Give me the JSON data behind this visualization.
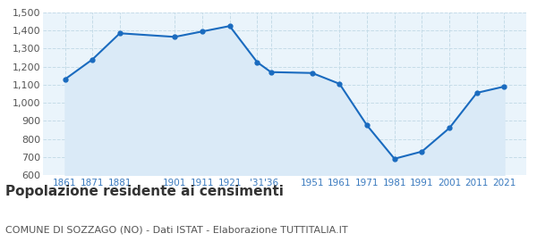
{
  "years": [
    1861,
    1871,
    1881,
    1901,
    1911,
    1921,
    1931,
    1936,
    1951,
    1961,
    1971,
    1981,
    1991,
    2001,
    2011,
    2021
  ],
  "population": [
    1130,
    1240,
    1385,
    1365,
    1395,
    1425,
    1225,
    1170,
    1165,
    1105,
    875,
    690,
    730,
    860,
    1055,
    1090
  ],
  "xtick_positions": [
    1861,
    1871,
    1881,
    1901,
    1911,
    1921,
    1931,
    1936,
    1951,
    1961,
    1971,
    1981,
    1991,
    2001,
    2011,
    2021
  ],
  "xtick_labels": [
    "1861",
    "1871",
    "1881",
    "1901",
    "1911",
    "1921",
    "'31",
    "'36",
    "1951",
    "1961",
    "1971",
    "1981",
    "1991",
    "2001",
    "2011",
    "2021"
  ],
  "line_color": "#1a6bbf",
  "fill_color": "#daeaf7",
  "marker_color": "#1a6bbf",
  "background_color": "#eaf4fb",
  "grid_color": "#c5dce8",
  "tick_label_color": "#3a7abf",
  "ylim": [
    600,
    1500
  ],
  "yticks": [
    600,
    700,
    800,
    900,
    1000,
    1100,
    1200,
    1300,
    1400,
    1500
  ],
  "xlim_min": 1853,
  "xlim_max": 2029,
  "title": "Popolazione residente ai censimenti",
  "subtitle": "COMUNE DI SOZZAGO (NO) - Dati ISTAT - Elaborazione TUTTITALIA.IT",
  "title_fontsize": 11,
  "subtitle_fontsize": 8,
  "title_color": "#333333",
  "subtitle_color": "#555555"
}
